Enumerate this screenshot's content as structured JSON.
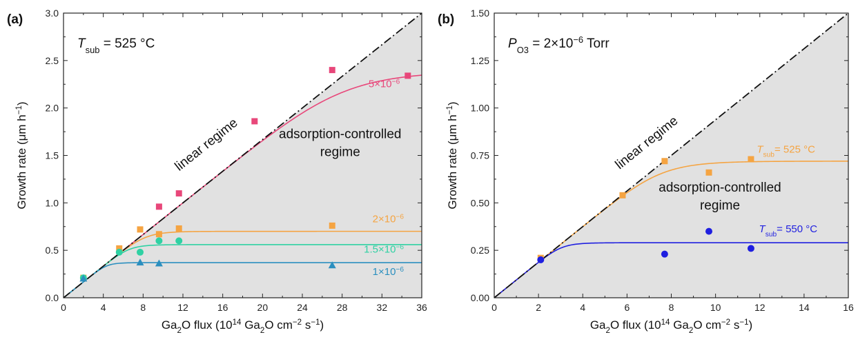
{
  "chart_data": [
    {
      "type": "scatter",
      "panel_label": "(a)",
      "xlabel": "Ga₂O flux (10¹⁴ Ga₂O cm⁻² s⁻¹)",
      "ylabel": "Growth rate (μm h⁻¹)",
      "xlim": [
        0,
        36
      ],
      "ylim": [
        0,
        3.0
      ],
      "xticks": [
        "0",
        "4",
        "8",
        "12",
        "16",
        "20",
        "24",
        "28",
        "32",
        "36"
      ],
      "yticks": [
        "0.0",
        "0.5",
        "1.0",
        "1.5",
        "2.0",
        "2.5",
        "3.0"
      ],
      "grid": false,
      "condition_label": "T_sub = 525 °C",
      "annotations": [
        "linear regime",
        "adsorption-controlled",
        "regime"
      ],
      "series": [
        {
          "name": "5×10⁻⁶",
          "color": "#e8477a",
          "marker": "square",
          "x": [
            9.6,
            11.6,
            19.2,
            27.0,
            34.6
          ],
          "y": [
            0.96,
            1.1,
            1.86,
            2.4,
            2.34
          ],
          "fit_saturation": 2.39
        },
        {
          "name": "2×10⁻⁶",
          "color": "#f5a442",
          "marker": "square",
          "x": [
            2.0,
            5.6,
            7.7,
            9.6,
            11.6,
            27.0
          ],
          "y": [
            0.21,
            0.52,
            0.72,
            0.67,
            0.73,
            0.76
          ],
          "fit_saturation": 0.7
        },
        {
          "name": "1.5×10⁻⁶",
          "color": "#2fd1a3",
          "marker": "circle",
          "x": [
            2.0,
            5.6,
            7.7,
            9.6,
            11.6
          ],
          "y": [
            0.21,
            0.48,
            0.48,
            0.6,
            0.6
          ],
          "fit_saturation": 0.56
        },
        {
          "name": "1×10⁻⁶",
          "color": "#2b8fbf",
          "marker": "triangle",
          "x": [
            2.0,
            7.7,
            9.6,
            27.0
          ],
          "y": [
            0.2,
            0.37,
            0.36,
            0.34
          ],
          "fit_saturation": 0.37
        }
      ]
    },
    {
      "type": "scatter",
      "panel_label": "(b)",
      "xlabel": "Ga₂O flux (10¹⁴ Ga₂O cm⁻² s⁻¹)",
      "ylabel": "Growth rate (μm h⁻¹)",
      "xlim": [
        0,
        16
      ],
      "ylim": [
        0,
        1.5
      ],
      "xticks": [
        "0",
        "2",
        "4",
        "6",
        "8",
        "10",
        "12",
        "14",
        "16"
      ],
      "yticks": [
        "0.00",
        "0.25",
        "0.50",
        "0.75",
        "1.00",
        "1.25",
        "1.50"
      ],
      "grid": false,
      "condition_label": "P_O3 = 2×10⁻⁶ Torr",
      "annotations": [
        "linear regime",
        "adsorption-controlled",
        "regime"
      ],
      "series": [
        {
          "name": "T_sub= 525 °C",
          "color": "#f5a442",
          "marker": "square",
          "x": [
            2.1,
            5.8,
            7.7,
            9.7,
            11.6
          ],
          "y": [
            0.21,
            0.54,
            0.72,
            0.66,
            0.73
          ],
          "fit_saturation": 0.72
        },
        {
          "name": "T_sub= 550 °C",
          "color": "#1f1fe0",
          "marker": "circle",
          "x": [
            2.1,
            7.7,
            9.7,
            11.6
          ],
          "y": [
            0.2,
            0.23,
            0.35,
            0.26
          ],
          "fit_saturation": 0.29
        }
      ]
    }
  ]
}
